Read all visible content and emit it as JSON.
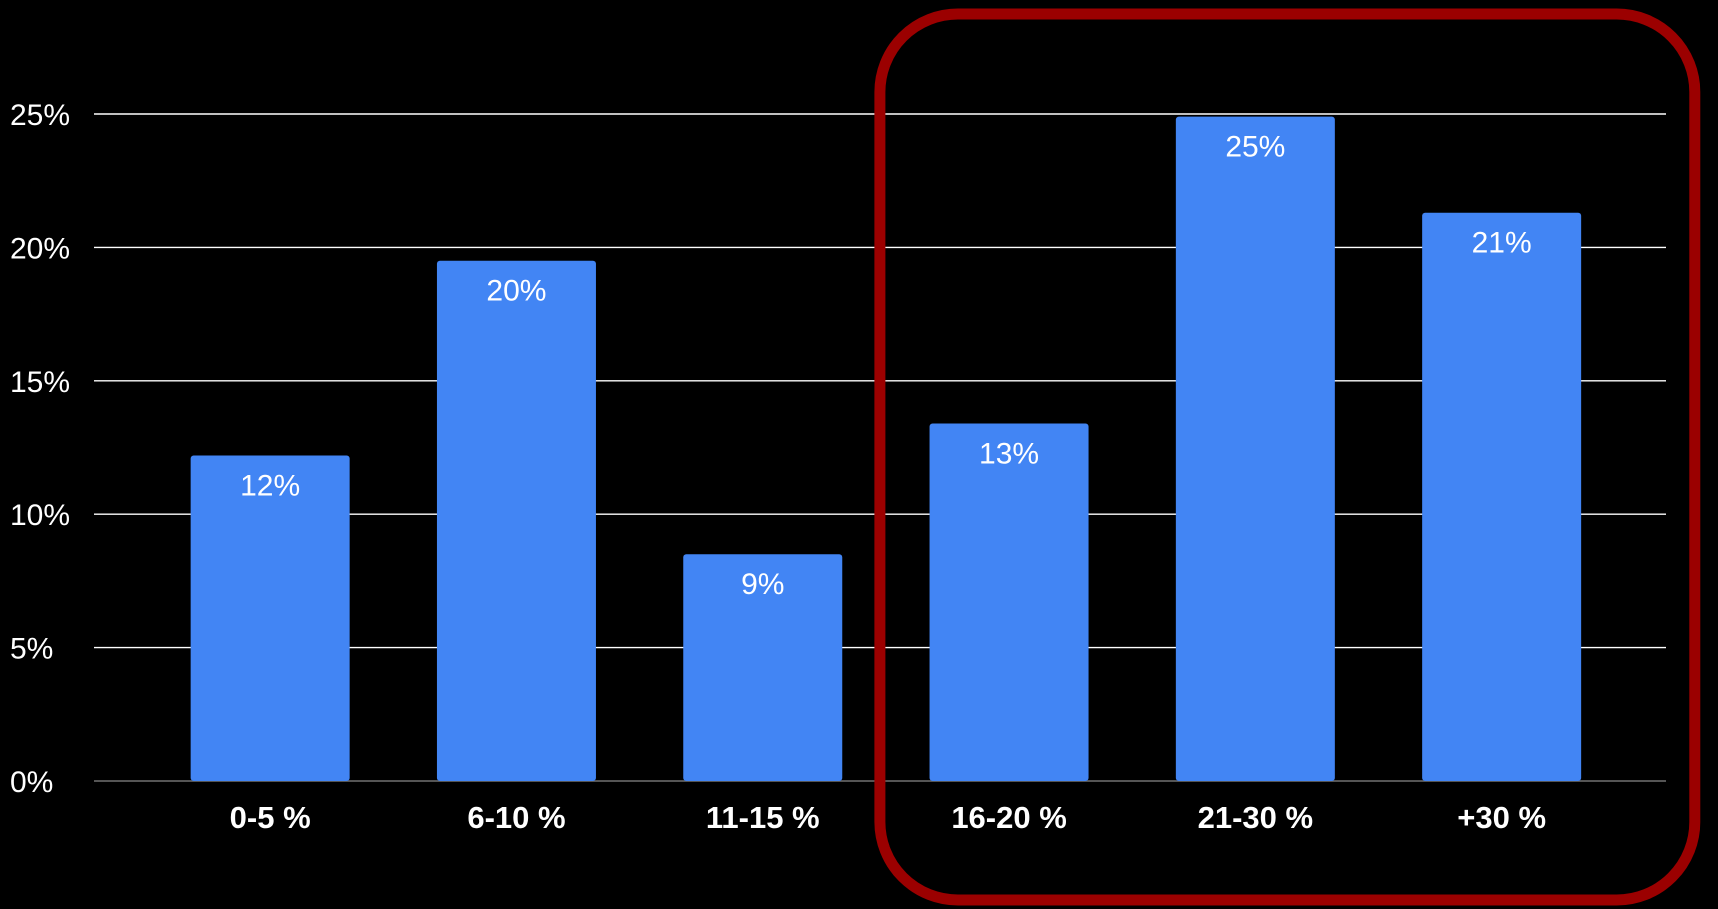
{
  "chart_data": {
    "type": "bar",
    "title": "",
    "xlabel": "",
    "ylabel": "",
    "categories": [
      "0-5 %",
      "6-10 %",
      "11-15 %",
      "16-20 %",
      "21-30 %",
      "+30 %"
    ],
    "values": [
      12.2,
      19.5,
      8.5,
      13.4,
      24.9,
      21.3
    ],
    "data_labels": [
      "12%",
      "20%",
      "9%",
      "13%",
      "25%",
      "21%"
    ],
    "ylim": [
      0,
      25
    ],
    "y_ticks": [
      0,
      5,
      10,
      15,
      20,
      25
    ],
    "y_tick_labels": [
      "0%",
      "5%",
      "10%",
      "15%",
      "20%",
      "25%"
    ],
    "grid": true,
    "legend": "none",
    "highlighted_categories": [
      "16-20 %",
      "21-30 %",
      "+30 %"
    ],
    "colors": {
      "background": "#000000",
      "bar": "#4285f4",
      "gridline": "#ffffff",
      "text": "#ffffff",
      "highlight_box": "#9b0000"
    }
  }
}
